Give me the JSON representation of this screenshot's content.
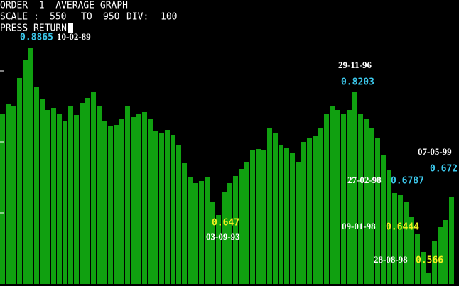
{
  "header": {
    "title": "ORDER  1  AVERAGE GRAPH",
    "scale_label": "SCALE :",
    "to_label": "TO",
    "div_label": "DIV:",
    "div": 100,
    "prompt": "PRESS RETURN"
  },
  "chart_data": {
    "type": "bar",
    "color": "#10a010",
    "ylim": [
      550,
      950
    ],
    "yticks": [
      650,
      750,
      850
    ],
    "values": [
      790,
      804,
      800,
      840,
      865,
      883,
      827,
      810,
      795,
      798,
      790,
      780,
      800,
      788,
      805,
      812,
      820,
      800,
      780,
      772,
      774,
      782,
      800,
      785,
      790,
      792,
      782,
      765,
      762,
      767,
      760,
      745,
      720,
      700,
      692,
      695,
      700,
      665,
      647,
      680,
      692,
      702,
      712,
      722,
      738,
      740,
      738,
      770,
      762,
      745,
      742,
      735,
      722,
      750,
      755,
      758,
      770,
      790,
      800,
      795,
      790,
      795,
      820,
      790,
      782,
      770,
      755,
      732,
      710,
      678,
      675,
      665,
      644,
      620,
      595,
      566,
      610,
      630,
      640,
      672
    ],
    "annotations": [
      {
        "value_label": "0.8865",
        "date": "10-02-89",
        "color": "#3cc8ec"
      },
      {
        "value_label": "0.8203",
        "date": "29-11-96",
        "color": "#3cc8ec"
      },
      {
        "value_label": "0.672",
        "date": "07-05-99",
        "color": "#3cc8ec"
      },
      {
        "value_label": "0.6787",
        "date": "27-02-98",
        "color": "#3cc8ec"
      },
      {
        "value_label": "0.647",
        "date": "03-09-93",
        "color": "#f0f020"
      },
      {
        "value_label": "0.6444",
        "date": "09-01-98",
        "color": "#f0f020"
      },
      {
        "value_label": "0.566",
        "date": "28-08-98",
        "color": "#f0f020"
      }
    ]
  }
}
